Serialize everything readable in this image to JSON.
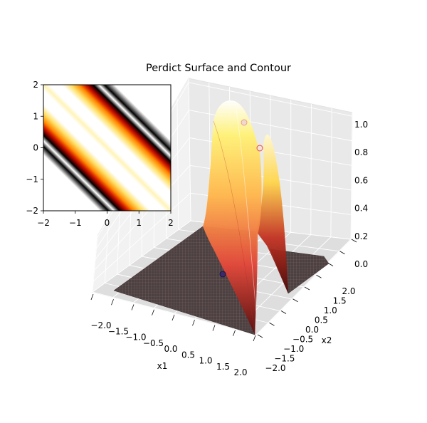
{
  "chart_data": [
    {
      "type": "surface3d",
      "title": "Perdict Surface and Contour",
      "xlabel": "x1",
      "ylabel": "x2",
      "zlabel": "",
      "x_ticks": [
        "−2.0",
        "−1.5",
        "−1.0",
        "−0.5",
        "0.0",
        "0.5",
        "1.0",
        "1.5",
        "2.0"
      ],
      "y_ticks": [
        "−2.0",
        "−1.5",
        "−1.0",
        "−0.5",
        "0.0",
        "0.5",
        "1.0",
        "1.5",
        "2.0"
      ],
      "z_ticks": [
        "0.0",
        "0.2",
        "0.4",
        "0.6",
        "0.8",
        "1.0"
      ],
      "xlim": [
        -2,
        2
      ],
      "ylim": [
        -2,
        2
      ],
      "zlim": [
        0,
        1
      ],
      "surface": "ridge along x1 + x2 ≈ 0 with a central dip; value ≈ 1 at ridge crests, ≈ 0 elsewhere",
      "colormap": "hot",
      "points": [
        {
          "x1": -0.6,
          "x2": 1.4,
          "z": 1.0
        },
        {
          "x1": 0.2,
          "x2": 1.5,
          "z": 0.85
        },
        {
          "x1": 0.2,
          "x2": -0.9,
          "z": 0.0
        }
      ],
      "grid": true
    },
    {
      "type": "heatmap",
      "title": "",
      "x_ticks": [
        "−2",
        "−1",
        "0",
        "1",
        "2"
      ],
      "y_ticks": [
        "−2",
        "−1",
        "0",
        "1",
        "2"
      ],
      "xlim": [
        -2,
        2
      ],
      "ylim": [
        -2,
        2
      ],
      "band": "diagonal band along x1 + x2 = 0",
      "colormap": "hot"
    }
  ]
}
